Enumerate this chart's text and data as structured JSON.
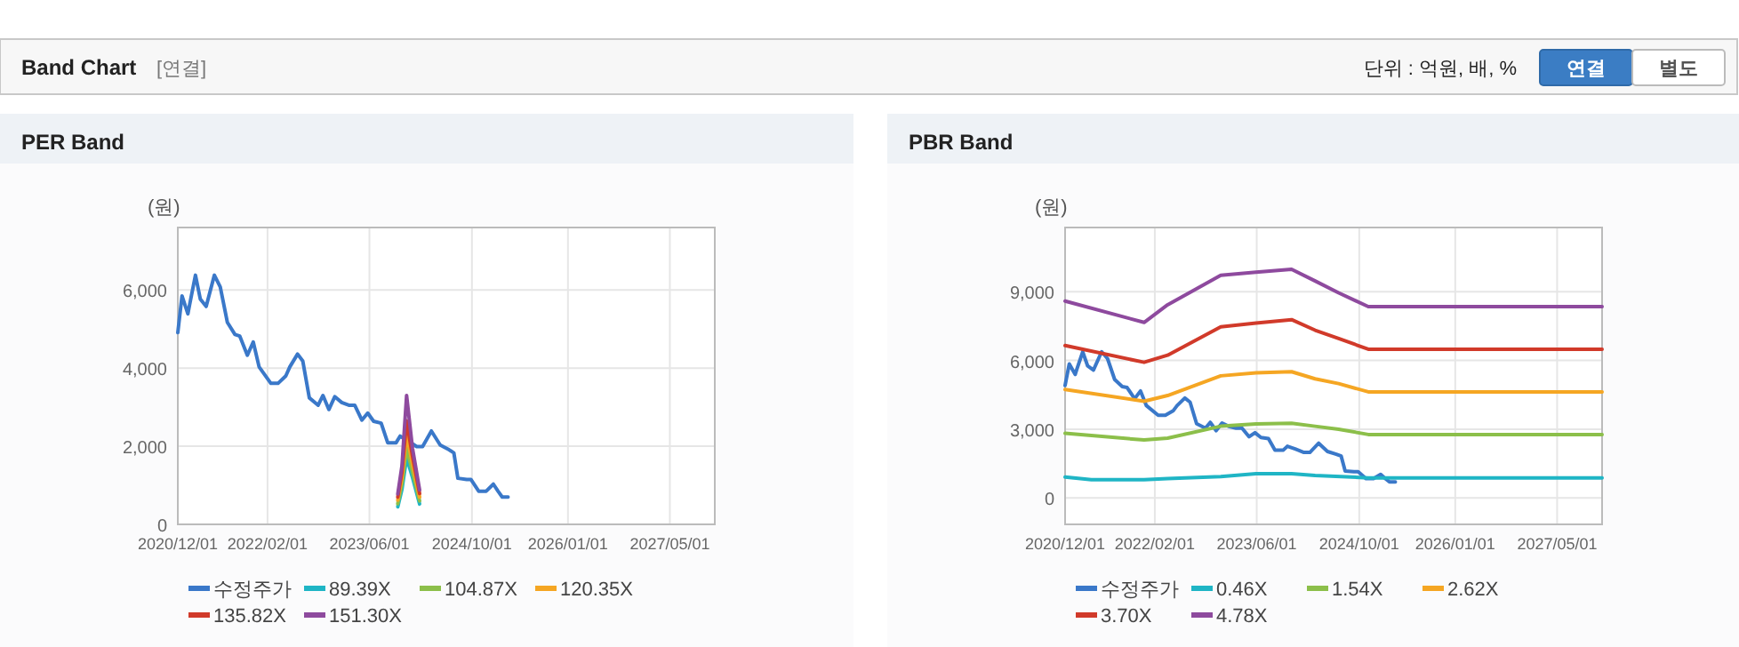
{
  "chart_data": [
    {
      "type": "other",
      "title": "Band Chart",
      "subtitle": "[연결]",
      "annotations": [
        "단위 : 억원, 배, %",
        "연결",
        "별도"
      ]
    },
    {
      "type": "line",
      "title": "PER Band",
      "ylabel": "(원)",
      "grid": true,
      "legend": "bottom",
      "xlim": [
        "2020-12-01",
        "2027-12-01"
      ],
      "ylim": [
        0,
        7600
      ],
      "xticks": [
        {
          "value": "2020-12-01",
          "label": "2020/12/01"
        },
        {
          "value": "2022-02-01",
          "label": "2022/02/01"
        },
        {
          "value": "2023-06-01",
          "label": "2023/06/01"
        },
        {
          "value": "2024-10-01",
          "label": "2024/10/01"
        },
        {
          "value": "2026-01-01",
          "label": "2026/01/01"
        },
        {
          "value": "2027-05-01",
          "label": "2027/05/01"
        }
      ],
      "yticks": [
        {
          "value": 0,
          "label": "0"
        },
        {
          "value": 2000,
          "label": "2,000"
        },
        {
          "value": 4000,
          "label": "4,000"
        },
        {
          "value": 6000,
          "label": "6,000"
        }
      ],
      "series": [
        {
          "name": "수정주가",
          "color": "#3a78c9",
          "x": [
            "2020-12-01",
            "2020-12-21",
            "2021-01-18",
            "2021-01-26",
            "2021-02-23",
            "2021-03-18",
            "2021-04-15",
            "2021-05-24",
            "2021-06-21",
            "2021-07-25",
            "2021-08-30",
            "2021-09-22",
            "2021-10-28",
            "2021-11-25",
            "2021-12-23",
            "2022-02-17",
            "2022-03-23",
            "2022-04-29",
            "2022-05-18",
            "2022-06-24",
            "2022-07-19",
            "2022-08-19",
            "2022-09-30",
            "2022-10-23",
            "2022-11-20",
            "2022-12-18",
            "2023-01-20",
            "2023-02-23",
            "2023-03-23",
            "2023-04-26",
            "2023-05-24",
            "2023-06-21",
            "2023-07-27",
            "2023-08-27",
            "2023-10-06",
            "2023-10-25",
            "2023-12-01",
            "2024-01-12",
            "2024-02-09",
            "2024-03-22",
            "2024-05-03",
            "2024-06-14",
            "2024-07-07",
            "2024-07-26",
            "2024-09-06",
            "2024-09-26",
            "2024-11-02",
            "2024-12-08",
            "2025-01-11",
            "2025-02-02",
            "2025-02-22",
            "2025-03-22"
          ],
          "values": [
            4910,
            5850,
            5390,
            5620,
            6380,
            5770,
            5580,
            6380,
            6080,
            5170,
            4860,
            4820,
            4330,
            4670,
            4030,
            3610,
            3610,
            3800,
            4030,
            4360,
            4180,
            3240,
            3050,
            3300,
            2940,
            3270,
            3120,
            3050,
            3050,
            2670,
            2850,
            2640,
            2590,
            2090,
            2090,
            2260,
            2140,
            1990,
            1990,
            2390,
            2030,
            1910,
            1830,
            1180,
            1150,
            1150,
            850,
            850,
            1030,
            850,
            700,
            700
          ]
        },
        {
          "name": "89.39X",
          "color": "#1fb5c5",
          "x": [
            "2023-10-14",
            "2023-11-03",
            "2023-11-25",
            "2023-12-23",
            "2024-01-26"
          ],
          "values": [
            450,
            900,
            1700,
            1200,
            520
          ]
        },
        {
          "name": "104.87X",
          "color": "#8cbf4a",
          "x": [
            "2023-10-14",
            "2023-11-03",
            "2023-11-25",
            "2023-12-23",
            "2024-01-26"
          ],
          "values": [
            530,
            1050,
            1950,
            1350,
            600
          ]
        },
        {
          "name": "120.35X",
          "color": "#f5a623",
          "x": [
            "2023-10-14",
            "2023-11-03",
            "2023-11-25",
            "2023-12-23",
            "2024-01-26"
          ],
          "values": [
            620,
            1200,
            2300,
            1550,
            700
          ]
        },
        {
          "name": "135.82X",
          "color": "#d13a2a",
          "x": [
            "2023-10-14",
            "2023-11-03",
            "2023-11-25",
            "2023-12-23",
            "2024-01-26"
          ],
          "values": [
            700,
            1350,
            2650,
            1750,
            790
          ]
        },
        {
          "name": "151.30X",
          "color": "#8e4a9e",
          "x": [
            "2023-10-14",
            "2023-11-03",
            "2023-11-25",
            "2023-12-23",
            "2024-01-26"
          ],
          "values": [
            780,
            1500,
            3300,
            1950,
            880
          ]
        }
      ]
    },
    {
      "type": "line",
      "title": "PBR Band",
      "ylabel": "(원)",
      "grid": true,
      "legend": "bottom",
      "xlim": [
        "2020-12-01",
        "2027-12-01"
      ],
      "ylim": [
        -1150,
        11800
      ],
      "xticks": [
        {
          "value": "2020-12-01",
          "label": "2020/12/01"
        },
        {
          "value": "2022-02-01",
          "label": "2022/02/01"
        },
        {
          "value": "2023-06-01",
          "label": "2023/06/01"
        },
        {
          "value": "2024-10-01",
          "label": "2024/10/01"
        },
        {
          "value": "2026-01-01",
          "label": "2026/01/01"
        },
        {
          "value": "2027-05-01",
          "label": "2027/05/01"
        }
      ],
      "yticks": [
        {
          "value": 0,
          "label": "0"
        },
        {
          "value": 3000,
          "label": "3,000"
        },
        {
          "value": 6000,
          "label": "6,000"
        },
        {
          "value": 9000,
          "label": "9,000"
        }
      ],
      "series": [
        {
          "name": "수정주가",
          "color": "#3a78c9",
          "x": [
            "2020-12-01",
            "2020-12-21",
            "2021-01-18",
            "2021-01-26",
            "2021-02-23",
            "2021-03-18",
            "2021-04-15",
            "2021-05-24",
            "2021-06-21",
            "2021-07-25",
            "2021-08-30",
            "2021-09-22",
            "2021-10-28",
            "2021-11-25",
            "2021-12-23",
            "2022-02-17",
            "2022-03-23",
            "2022-04-29",
            "2022-05-18",
            "2022-06-24",
            "2022-07-19",
            "2022-08-19",
            "2022-09-30",
            "2022-10-23",
            "2022-11-20",
            "2022-12-18",
            "2023-01-20",
            "2023-02-23",
            "2023-03-23",
            "2023-04-26",
            "2023-05-24",
            "2023-06-21",
            "2023-07-27",
            "2023-08-27",
            "2023-10-06",
            "2023-10-25",
            "2023-12-01",
            "2024-01-12",
            "2024-02-09",
            "2024-03-22",
            "2024-05-03",
            "2024-06-14",
            "2024-07-07",
            "2024-07-26",
            "2024-09-06",
            "2024-09-26",
            "2024-11-02",
            "2024-12-08",
            "2025-01-11",
            "2025-02-02",
            "2025-02-22",
            "2025-03-22"
          ],
          "values": [
            4910,
            5850,
            5390,
            5620,
            6380,
            5770,
            5580,
            6380,
            6080,
            5170,
            4860,
            4820,
            4330,
            4670,
            4030,
            3610,
            3610,
            3800,
            4030,
            4360,
            4180,
            3240,
            3050,
            3300,
            2940,
            3270,
            3120,
            3050,
            3050,
            2670,
            2850,
            2640,
            2590,
            2090,
            2090,
            2260,
            2140,
            1990,
            1990,
            2390,
            2030,
            1910,
            1830,
            1180,
            1150,
            1150,
            850,
            850,
            1030,
            850,
            700,
            700
          ]
        },
        {
          "name": "0.46X",
          "color": "#1fb5c5",
          "x": [
            "2020-12-01",
            "2021-04-05",
            "2021-12-12",
            "2022-04-03",
            "2022-12-12",
            "2023-05-29",
            "2023-11-14",
            "2024-03-05",
            "2024-11-13",
            "2027-12-01"
          ],
          "values": [
            910,
            800,
            800,
            850,
            930,
            1060,
            1060,
            980,
            880,
            880
          ]
        },
        {
          "name": "1.54X",
          "color": "#8cbf4a",
          "x": [
            "2020-12-01",
            "2021-12-12",
            "2022-04-03",
            "2022-12-12",
            "2023-05-29",
            "2023-11-14",
            "2024-03-05",
            "2024-06-25",
            "2024-11-13",
            "2027-12-01"
          ],
          "values": [
            2820,
            2530,
            2610,
            3130,
            3230,
            3260,
            3130,
            3000,
            2770,
            2770
          ]
        },
        {
          "name": "2.62X",
          "color": "#f5a623",
          "x": [
            "2020-12-01",
            "2021-12-12",
            "2022-04-03",
            "2022-12-12",
            "2023-05-29",
            "2023-11-14",
            "2024-03-05",
            "2024-06-25",
            "2024-11-13",
            "2027-12-01"
          ],
          "values": [
            4730,
            4220,
            4470,
            5330,
            5460,
            5510,
            5200,
            4990,
            4630,
            4630
          ]
        },
        {
          "name": "3.70X",
          "color": "#d13a2a",
          "x": [
            "2020-12-01",
            "2021-12-12",
            "2022-04-03",
            "2022-12-12",
            "2023-05-29",
            "2023-11-14",
            "2024-03-05",
            "2024-06-25",
            "2024-11-13",
            "2027-12-01"
          ],
          "values": [
            6650,
            5920,
            6230,
            7470,
            7630,
            7780,
            7320,
            6960,
            6490,
            6490
          ]
        },
        {
          "name": "4.78X",
          "color": "#8e4a9e",
          "x": [
            "2020-12-01",
            "2021-12-12",
            "2022-04-03",
            "2022-12-12",
            "2023-05-29",
            "2023-11-14",
            "2024-03-05",
            "2024-06-25",
            "2024-11-13",
            "2027-12-01"
          ],
          "values": [
            8590,
            7660,
            8430,
            9720,
            9850,
            9980,
            9470,
            8950,
            8350,
            8350
          ]
        }
      ]
    }
  ]
}
